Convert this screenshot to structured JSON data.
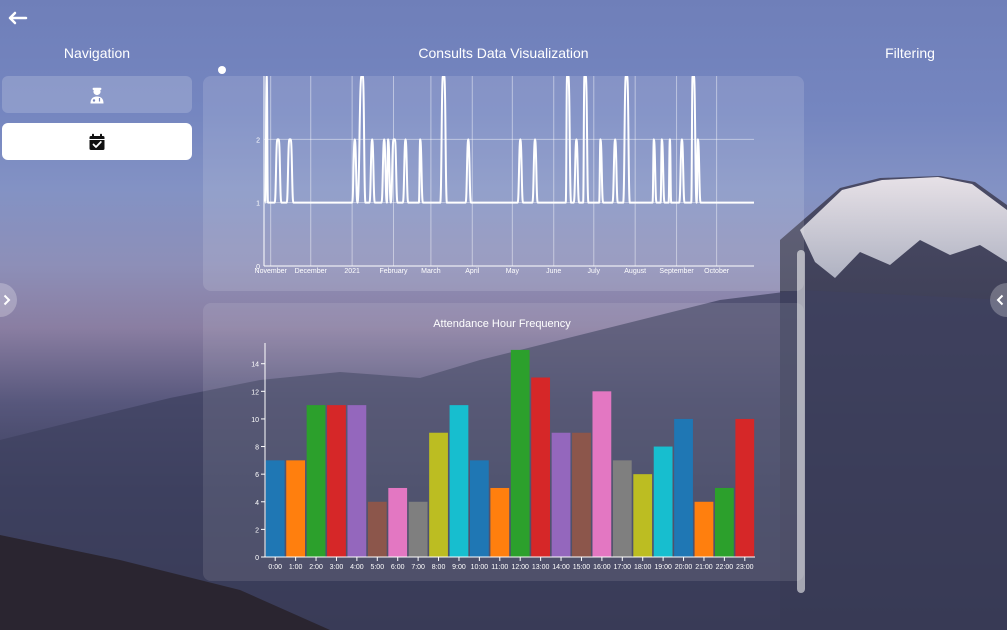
{
  "header": {
    "back_icon": "arrow-left-icon",
    "navigation_title": "Navigation",
    "main_title": "Consults Data Visualization",
    "filtering_title": "Filtering"
  },
  "sidebar": {
    "items": [
      {
        "icon": "doctor-icon",
        "active": false
      },
      {
        "icon": "calendar-check-icon",
        "active": true
      }
    ]
  },
  "toggles": {
    "left_icon": "chevron-right-icon",
    "right_icon": "chevron-left-icon"
  },
  "colors": {
    "panel_bg": "rgba(255,255,255,0.13)",
    "line": "#ffffff",
    "palette": [
      "#1f77b4",
      "#ff7f0e",
      "#2ca02c",
      "#d62728",
      "#9467bd",
      "#8c564b",
      "#e377c2",
      "#7f7f7f",
      "#bcbd22",
      "#17becf"
    ]
  },
  "chart_data": [
    {
      "type": "line",
      "title": "",
      "xlabel": "",
      "ylabel": "",
      "x_ticks": [
        "November",
        "December",
        "2021",
        "February",
        "March",
        "April",
        "May",
        "June",
        "July",
        "August",
        "September",
        "October"
      ],
      "y_ticks": [
        "0",
        "1",
        "2"
      ],
      "ylim": [
        0,
        3
      ],
      "xlim": [
        "2020-10-27",
        "2021-10-29"
      ],
      "grid": true,
      "series": [
        {
          "points": [
            [
              "2020-10-28",
              1
            ],
            [
              "2020-10-29",
              3
            ],
            [
              "2020-10-30",
              1
            ],
            [
              "2020-11-04",
              1
            ],
            [
              "2020-11-06",
              2
            ],
            [
              "2020-11-07",
              2
            ],
            [
              "2020-11-09",
              1
            ],
            [
              "2020-11-13",
              1
            ],
            [
              "2020-11-15",
              2
            ],
            [
              "2020-11-16",
              2
            ],
            [
              "2020-11-18",
              1
            ],
            [
              "2021-01-01",
              1
            ],
            [
              "2021-01-03",
              2
            ],
            [
              "2021-01-05",
              1
            ],
            [
              "2021-01-08",
              3
            ],
            [
              "2021-01-09",
              3
            ],
            [
              "2021-01-11",
              1
            ],
            [
              "2021-01-14",
              1
            ],
            [
              "2021-01-16",
              2
            ],
            [
              "2021-01-18",
              1
            ],
            [
              "2021-01-23",
              1
            ],
            [
              "2021-01-25",
              2
            ],
            [
              "2021-01-27",
              1
            ],
            [
              "2021-01-28",
              2
            ],
            [
              "2021-01-30",
              1
            ],
            [
              "2021-02-01",
              2
            ],
            [
              "2021-02-02",
              2
            ],
            [
              "2021-02-04",
              1
            ],
            [
              "2021-02-08",
              1
            ],
            [
              "2021-02-10",
              2
            ],
            [
              "2021-02-12",
              1
            ],
            [
              "2021-02-20",
              1
            ],
            [
              "2021-02-21",
              2
            ],
            [
              "2021-02-23",
              1
            ],
            [
              "2021-03-08",
              1
            ],
            [
              "2021-03-10",
              3
            ],
            [
              "2021-03-11",
              3
            ],
            [
              "2021-03-13",
              1
            ],
            [
              "2021-03-27",
              1
            ],
            [
              "2021-03-29",
              2
            ],
            [
              "2021-03-31",
              1
            ],
            [
              "2021-05-05",
              1
            ],
            [
              "2021-05-07",
              2
            ],
            [
              "2021-05-09",
              1
            ],
            [
              "2021-05-16",
              1
            ],
            [
              "2021-05-18",
              2
            ],
            [
              "2021-05-20",
              1
            ],
            [
              "2021-06-10",
              1
            ],
            [
              "2021-06-11",
              3
            ],
            [
              "2021-06-12",
              3
            ],
            [
              "2021-06-14",
              1
            ],
            [
              "2021-06-16",
              1
            ],
            [
              "2021-06-18",
              2
            ],
            [
              "2021-06-20",
              1
            ],
            [
              "2021-06-23",
              1
            ],
            [
              "2021-06-24",
              3
            ],
            [
              "2021-06-25",
              3
            ],
            [
              "2021-06-27",
              1
            ],
            [
              "2021-07-05",
              1
            ],
            [
              "2021-07-06",
              2
            ],
            [
              "2021-07-08",
              1
            ],
            [
              "2021-07-15",
              1
            ],
            [
              "2021-07-17",
              2
            ],
            [
              "2021-07-19",
              1
            ],
            [
              "2021-07-23",
              1
            ],
            [
              "2021-07-25",
              3
            ],
            [
              "2021-07-26",
              3
            ],
            [
              "2021-07-28",
              1
            ],
            [
              "2021-08-14",
              1
            ],
            [
              "2021-08-15",
              2
            ],
            [
              "2021-08-17",
              1
            ],
            [
              "2021-08-20",
              1
            ],
            [
              "2021-08-21",
              2
            ],
            [
              "2021-08-23",
              1
            ],
            [
              "2021-08-26",
              1
            ],
            [
              "2021-08-27",
              2
            ],
            [
              "2021-08-28",
              1
            ],
            [
              "2021-09-03",
              1
            ],
            [
              "2021-09-05",
              2
            ],
            [
              "2021-09-07",
              1
            ],
            [
              "2021-09-12",
              1
            ],
            [
              "2021-09-13",
              3
            ],
            [
              "2021-09-14",
              3
            ],
            [
              "2021-09-16",
              1
            ],
            [
              "2021-09-17",
              2
            ],
            [
              "2021-09-19",
              1
            ],
            [
              "2021-10-29",
              1
            ]
          ]
        }
      ]
    },
    {
      "type": "bar",
      "title": "Attendance Hour Frequency",
      "xlabel": "",
      "ylabel": "",
      "categories": [
        "0:00",
        "1:00",
        "2:00",
        "3:00",
        "4:00",
        "5:00",
        "6:00",
        "7:00",
        "8:00",
        "9:00",
        "10:00",
        "11:00",
        "12:00",
        "13:00",
        "14:00",
        "15:00",
        "16:00",
        "17:00",
        "18:00",
        "19:00",
        "20:00",
        "21:00",
        "22:00",
        "23:00"
      ],
      "values": [
        7,
        7,
        11,
        11,
        11,
        4,
        5,
        4,
        9,
        11,
        7,
        5,
        15,
        13,
        9,
        9,
        12,
        7,
        6,
        8,
        10,
        4,
        5,
        10
      ],
      "ylim": [
        0,
        15.5
      ],
      "y_ticks": [
        0,
        2,
        4,
        6,
        8,
        10,
        12,
        14
      ],
      "grid": false
    }
  ]
}
